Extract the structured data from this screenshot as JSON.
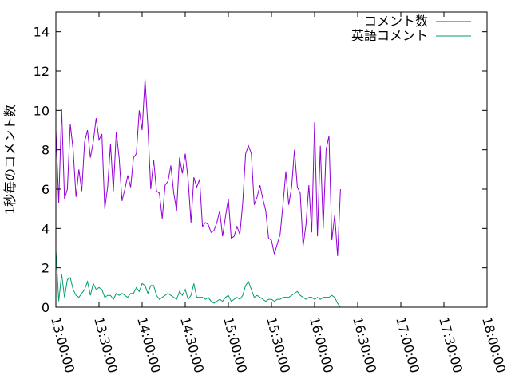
{
  "chart_data": {
    "type": "line",
    "title": "",
    "xlabel": "",
    "ylabel": "1秒毎のコメント数",
    "xlim": [
      "13:00:00",
      "18:00:00"
    ],
    "ylim": [
      0,
      15
    ],
    "grid": false,
    "legend_position": "top-right",
    "y_ticks": [
      "0",
      "2",
      "4",
      "6",
      "8",
      "10",
      "12",
      "14"
    ],
    "x_ticks": [
      "13:00:00",
      "13:30:00",
      "14:00:00",
      "14:30:00",
      "15:00:00",
      "15:30:00",
      "16:00:00",
      "16:30:00",
      "17:00:00",
      "17:30:00",
      "18:00:00"
    ],
    "series": [
      {
        "name": "コメント数",
        "color": "#9400d3",
        "points": [
          [
            "13:00:00",
            9.0
          ],
          [
            "13:02:00",
            5.3
          ],
          [
            "13:04:00",
            10.1
          ],
          [
            "13:06:00",
            5.5
          ],
          [
            "13:08:00",
            6.0
          ],
          [
            "13:10:00",
            9.3
          ],
          [
            "13:12:00",
            8.0
          ],
          [
            "13:14:00",
            5.6
          ],
          [
            "13:16:00",
            7.0
          ],
          [
            "13:18:00",
            5.9
          ],
          [
            "13:20:00",
            8.4
          ],
          [
            "13:22:00",
            9.0
          ],
          [
            "13:24:00",
            7.6
          ],
          [
            "13:26:00",
            8.4
          ],
          [
            "13:28:00",
            9.6
          ],
          [
            "13:30:00",
            8.5
          ],
          [
            "13:32:00",
            8.8
          ],
          [
            "13:34:00",
            5.0
          ],
          [
            "13:36:00",
            6.1
          ],
          [
            "13:38:00",
            8.3
          ],
          [
            "13:40:00",
            5.9
          ],
          [
            "13:42:00",
            8.9
          ],
          [
            "13:44:00",
            7.6
          ],
          [
            "13:46:00",
            5.4
          ],
          [
            "13:48:00",
            6.0
          ],
          [
            "13:50:00",
            6.7
          ],
          [
            "13:52:00",
            6.1
          ],
          [
            "13:54:00",
            7.6
          ],
          [
            "13:56:00",
            7.8
          ],
          [
            "13:58:00",
            10.0
          ],
          [
            "14:00:00",
            9.0
          ],
          [
            "14:02:00",
            11.6
          ],
          [
            "14:04:00",
            9.2
          ],
          [
            "14:06:00",
            6.0
          ],
          [
            "14:08:00",
            7.5
          ],
          [
            "14:10:00",
            5.9
          ],
          [
            "14:12:00",
            5.8
          ],
          [
            "14:14:00",
            4.5
          ],
          [
            "14:16:00",
            6.2
          ],
          [
            "14:18:00",
            6.4
          ],
          [
            "14:20:00",
            7.2
          ],
          [
            "14:22:00",
            5.8
          ],
          [
            "14:24:00",
            4.9
          ],
          [
            "14:26:00",
            7.6
          ],
          [
            "14:28:00",
            6.8
          ],
          [
            "14:30:00",
            7.8
          ],
          [
            "14:32:00",
            6.5
          ],
          [
            "14:34:00",
            4.3
          ],
          [
            "14:36:00",
            6.6
          ],
          [
            "14:38:00",
            6.1
          ],
          [
            "14:40:00",
            6.5
          ],
          [
            "14:42:00",
            4.1
          ],
          [
            "14:44:00",
            4.3
          ],
          [
            "14:46:00",
            4.2
          ],
          [
            "14:48:00",
            3.8
          ],
          [
            "14:50:00",
            3.9
          ],
          [
            "14:52:00",
            4.3
          ],
          [
            "14:54:00",
            4.9
          ],
          [
            "14:56:00",
            3.6
          ],
          [
            "14:58:00",
            4.6
          ],
          [
            "15:00:00",
            5.5
          ],
          [
            "15:02:00",
            3.5
          ],
          [
            "15:04:00",
            3.6
          ],
          [
            "15:06:00",
            4.1
          ],
          [
            "15:08:00",
            3.7
          ],
          [
            "15:10:00",
            5.3
          ],
          [
            "15:12:00",
            7.8
          ],
          [
            "15:14:00",
            8.2
          ],
          [
            "15:16:00",
            7.8
          ],
          [
            "15:18:00",
            5.2
          ],
          [
            "15:20:00",
            5.6
          ],
          [
            "15:22:00",
            6.2
          ],
          [
            "15:24:00",
            5.5
          ],
          [
            "15:26:00",
            4.9
          ],
          [
            "15:28:00",
            3.5
          ],
          [
            "15:30:00",
            3.4
          ],
          [
            "15:32:00",
            2.7
          ],
          [
            "15:34:00",
            3.2
          ],
          [
            "15:36:00",
            3.7
          ],
          [
            "15:38:00",
            5.2
          ],
          [
            "15:40:00",
            6.9
          ],
          [
            "15:42:00",
            5.2
          ],
          [
            "15:44:00",
            6.1
          ],
          [
            "15:46:00",
            8.0
          ],
          [
            "15:48:00",
            6.1
          ],
          [
            "15:50:00",
            5.8
          ],
          [
            "15:52:00",
            3.1
          ],
          [
            "15:54:00",
            4.2
          ],
          [
            "15:56:00",
            6.2
          ],
          [
            "15:58:00",
            3.8
          ],
          [
            "16:00:00",
            9.4
          ],
          [
            "16:02:00",
            3.6
          ],
          [
            "16:04:00",
            8.2
          ],
          [
            "16:06:00",
            4.0
          ],
          [
            "16:08:00",
            8.0
          ],
          [
            "16:10:00",
            8.7
          ],
          [
            "16:12:00",
            3.4
          ],
          [
            "16:14:00",
            4.7
          ],
          [
            "16:16:00",
            2.6
          ],
          [
            "16:18:00",
            6.0
          ]
        ]
      },
      {
        "name": "英語コメント",
        "color": "#009e73",
        "points": [
          [
            "13:00:00",
            2.9
          ],
          [
            "13:02:00",
            0.3
          ],
          [
            "13:04:00",
            1.7
          ],
          [
            "13:06:00",
            0.5
          ],
          [
            "13:08:00",
            1.4
          ],
          [
            "13:10:00",
            1.5
          ],
          [
            "13:12:00",
            0.9
          ],
          [
            "13:14:00",
            0.6
          ],
          [
            "13:16:00",
            0.5
          ],
          [
            "13:18:00",
            0.7
          ],
          [
            "13:20:00",
            0.9
          ],
          [
            "13:22:00",
            1.3
          ],
          [
            "13:24:00",
            0.6
          ],
          [
            "13:26:00",
            1.2
          ],
          [
            "13:28:00",
            0.9
          ],
          [
            "13:30:00",
            1.0
          ],
          [
            "13:32:00",
            0.9
          ],
          [
            "13:34:00",
            0.5
          ],
          [
            "13:36:00",
            0.6
          ],
          [
            "13:38:00",
            0.6
          ],
          [
            "13:40:00",
            0.4
          ],
          [
            "13:42:00",
            0.7
          ],
          [
            "13:44:00",
            0.6
          ],
          [
            "13:46:00",
            0.7
          ],
          [
            "13:48:00",
            0.6
          ],
          [
            "13:50:00",
            0.5
          ],
          [
            "13:52:00",
            0.7
          ],
          [
            "13:54:00",
            0.7
          ],
          [
            "13:56:00",
            1.0
          ],
          [
            "13:58:00",
            0.8
          ],
          [
            "14:00:00",
            1.2
          ],
          [
            "14:02:00",
            1.1
          ],
          [
            "14:04:00",
            0.7
          ],
          [
            "14:06:00",
            1.1
          ],
          [
            "14:08:00",
            1.1
          ],
          [
            "14:10:00",
            0.6
          ],
          [
            "14:12:00",
            0.4
          ],
          [
            "14:14:00",
            0.5
          ],
          [
            "14:16:00",
            0.6
          ],
          [
            "14:18:00",
            0.7
          ],
          [
            "14:20:00",
            0.6
          ],
          [
            "14:22:00",
            0.5
          ],
          [
            "14:24:00",
            0.4
          ],
          [
            "14:26:00",
            0.8
          ],
          [
            "14:28:00",
            0.6
          ],
          [
            "14:30:00",
            0.9
          ],
          [
            "14:32:00",
            0.4
          ],
          [
            "14:34:00",
            0.6
          ],
          [
            "14:36:00",
            1.2
          ],
          [
            "14:38:00",
            0.5
          ],
          [
            "14:40:00",
            0.5
          ],
          [
            "14:42:00",
            0.5
          ],
          [
            "14:44:00",
            0.4
          ],
          [
            "14:46:00",
            0.5
          ],
          [
            "14:48:00",
            0.3
          ],
          [
            "14:50:00",
            0.2
          ],
          [
            "14:52:00",
            0.3
          ],
          [
            "14:54:00",
            0.4
          ],
          [
            "14:56:00",
            0.3
          ],
          [
            "14:58:00",
            0.5
          ],
          [
            "15:00:00",
            0.6
          ],
          [
            "15:02:00",
            0.3
          ],
          [
            "15:04:00",
            0.4
          ],
          [
            "15:06:00",
            0.5
          ],
          [
            "15:08:00",
            0.4
          ],
          [
            "15:10:00",
            0.6
          ],
          [
            "15:12:00",
            1.1
          ],
          [
            "15:14:00",
            1.3
          ],
          [
            "15:16:00",
            0.9
          ],
          [
            "15:18:00",
            0.5
          ],
          [
            "15:20:00",
            0.6
          ],
          [
            "15:22:00",
            0.5
          ],
          [
            "15:24:00",
            0.4
          ],
          [
            "15:26:00",
            0.3
          ],
          [
            "15:28:00",
            0.4
          ],
          [
            "15:30:00",
            0.4
          ],
          [
            "15:32:00",
            0.3
          ],
          [
            "15:34:00",
            0.4
          ],
          [
            "15:36:00",
            0.4
          ],
          [
            "15:38:00",
            0.5
          ],
          [
            "15:40:00",
            0.5
          ],
          [
            "15:42:00",
            0.5
          ],
          [
            "15:44:00",
            0.6
          ],
          [
            "15:46:00",
            0.7
          ],
          [
            "15:48:00",
            0.8
          ],
          [
            "15:50:00",
            0.6
          ],
          [
            "15:52:00",
            0.5
          ],
          [
            "15:54:00",
            0.4
          ],
          [
            "15:56:00",
            0.5
          ],
          [
            "15:58:00",
            0.5
          ],
          [
            "16:00:00",
            0.4
          ],
          [
            "16:02:00",
            0.5
          ],
          [
            "16:04:00",
            0.4
          ],
          [
            "16:06:00",
            0.5
          ],
          [
            "16:08:00",
            0.5
          ],
          [
            "16:10:00",
            0.5
          ],
          [
            "16:12:00",
            0.6
          ],
          [
            "16:14:00",
            0.5
          ],
          [
            "16:16:00",
            0.2
          ],
          [
            "16:18:00",
            0.0
          ]
        ]
      }
    ]
  }
}
